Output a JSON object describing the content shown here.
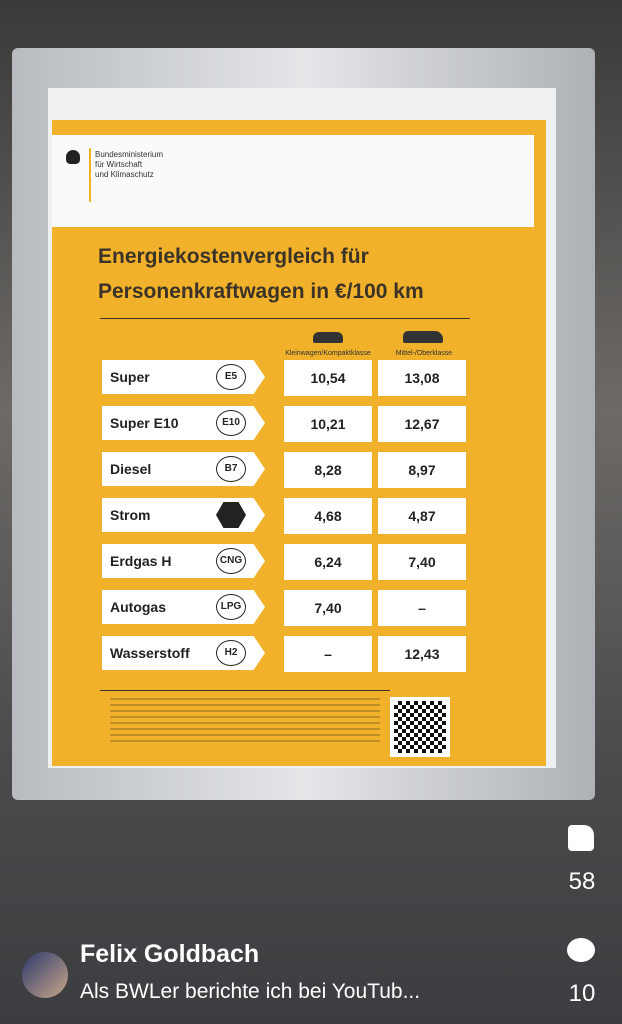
{
  "poster": {
    "ministry": [
      "Bundesministerium",
      "für Wirtschaft",
      "und Klimaschutz"
    ],
    "title": [
      "Energiekostenvergleich für",
      "Personenkraftwagen in €/100 km"
    ],
    "columns": [
      "Kleinwagen/Kompaktklasse",
      "Mittel-/Oberklasse"
    ],
    "rows": [
      {
        "name": "Super",
        "badge": "E5",
        "values": [
          "10,54",
          "13,08"
        ]
      },
      {
        "name": "Super E10",
        "badge": "E10",
        "values": [
          "10,21",
          "12,67"
        ]
      },
      {
        "name": "Diesel",
        "badge": "B7",
        "values": [
          "8,28",
          "8,97"
        ]
      },
      {
        "name": "Strom",
        "badge": null,
        "values": [
          "4,68",
          "4,87"
        ]
      },
      {
        "name": "Erdgas H",
        "badge": "CNG",
        "values": [
          "6,24",
          "7,40"
        ]
      },
      {
        "name": "Autogas",
        "badge": "LPG",
        "values": [
          "7,40",
          "–"
        ]
      },
      {
        "name": "Wasserstoff",
        "badge": "H2",
        "values": [
          "–",
          "12,43"
        ]
      }
    ]
  },
  "post": {
    "likes": "58",
    "comments": "10",
    "author": "Felix Goldbach",
    "caption": "Als BWLer berichte ich bei YouTub..."
  }
}
